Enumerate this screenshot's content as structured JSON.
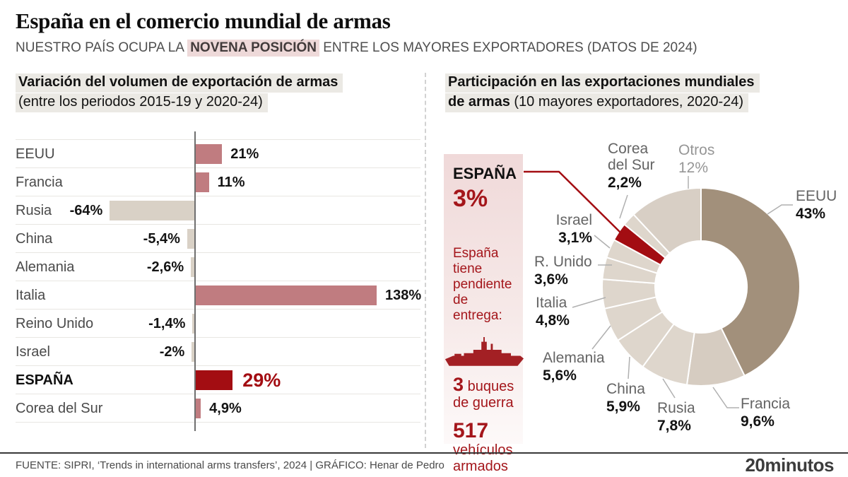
{
  "header": {
    "title": "España en el comercio mundial de armas",
    "subtitle_pre": "NUESTRO PAÍS OCUPA LA ",
    "subtitle_highlight": "NOVENA POSICIÓN",
    "subtitle_post": " ENTRE LOS MAYORES EXPORTADORES (DATOS DE 2024)"
  },
  "left_panel": {
    "title_bold": "Variación del volumen de exportación de armas",
    "title_sub": "(entre los periodos 2015-19 y 2020-24)",
    "bars": [
      {
        "label": "EEUU",
        "value": 21,
        "display": "21%"
      },
      {
        "label": "Francia",
        "value": 11,
        "display": "11%"
      },
      {
        "label": "Rusia",
        "value": -64,
        "display": "-64%"
      },
      {
        "label": "China",
        "value": -5.4,
        "display": "-5,4%"
      },
      {
        "label": "Alemania",
        "value": -2.6,
        "display": "-2,6%"
      },
      {
        "label": "Italia",
        "value": 138,
        "display": "138%"
      },
      {
        "label": "Reino Unido",
        "value": -1.4,
        "display": "-1,4%"
      },
      {
        "label": "Israel",
        "value": -2,
        "display": "-2%"
      },
      {
        "label": "ESPAÑA",
        "value": 29,
        "display": "29%",
        "emphasis": true
      },
      {
        "label": "Corea del Sur",
        "value": 4.9,
        "display": "4,9%"
      }
    ]
  },
  "right_panel": {
    "title_bold1": "Participación en las exportaciones mundiales",
    "title_bold2": "de armas",
    "title_sub": " (10 mayores exportadores, 2020-24)",
    "donut": {
      "slices": [
        {
          "label": "EEUU",
          "value": 43,
          "display": "43%"
        },
        {
          "label": "Francia",
          "value": 9.6,
          "display": "9,6%"
        },
        {
          "label": "Rusia",
          "value": 7.8,
          "display": "7,8%"
        },
        {
          "label": "China",
          "value": 5.9,
          "display": "5,9%"
        },
        {
          "label": "Alemania",
          "value": 5.6,
          "display": "5,6%"
        },
        {
          "label": "Italia",
          "value": 4.8,
          "display": "4,8%"
        },
        {
          "label": "R. Unido",
          "value": 3.6,
          "display": "3,6%"
        },
        {
          "label": "Israel",
          "value": 3.1,
          "display": "3,1%"
        },
        {
          "label": "ESPAÑA",
          "value": 3,
          "display": "3%",
          "emphasis": true
        },
        {
          "label": "Corea del Sur",
          "value": 2.2,
          "display": "2,2%"
        },
        {
          "label": "Otros",
          "value": 12,
          "display": "12%",
          "muted": true
        }
      ]
    },
    "callout": {
      "country": "ESPAÑA",
      "share": "3%",
      "pending_text": "España tiene pendiente de entrega:",
      "ship_icon": "warship-icon",
      "items": [
        {
          "number": "3",
          "number_inline": true,
          "lines": [
            "buques",
            "de guerra"
          ]
        },
        {
          "number": "517",
          "number_inline": false,
          "lines": [
            "vehículos",
            "armados"
          ]
        }
      ]
    }
  },
  "footer": {
    "source": "FUENTE: SIPRI, ‘Trends in international arms transfers’, 2024  |  GRÁFICO: Henar de Pedro",
    "brand": "20minutos"
  },
  "colors": {
    "accent_red": "#a30d12",
    "accent_red_text": "#a4161b",
    "bar_positive": "#c07c80",
    "bar_negative": "#d9d1c6",
    "donut_eeuu": "#a2907b",
    "donut_francia": "#d6ccc1",
    "donut_light": "#ded6cc",
    "donut_otros": "#d8cfc5",
    "connector_gray": "#b0b0b0"
  },
  "chart_data": [
    {
      "type": "bar",
      "orientation": "horizontal",
      "title": "Variación del volumen de exportación de armas (entre los periodos 2015-19 y 2020-24)",
      "categories": [
        "EEUU",
        "Francia",
        "Rusia",
        "China",
        "Alemania",
        "Italia",
        "Reino Unido",
        "Israel",
        "ESPAÑA",
        "Corea del Sur"
      ],
      "values": [
        21,
        11,
        -64,
        -5.4,
        -2.6,
        138,
        -1.4,
        -2,
        29,
        4.9
      ],
      "unit": "%",
      "xlim": [
        -64,
        138
      ],
      "highlight_category": "ESPAÑA",
      "grid": "row-separators",
      "legend": "none"
    },
    {
      "type": "pie",
      "subtype": "donut",
      "title": "Participación en las exportaciones mundiales de armas (10 mayores exportadores, 2020-24)",
      "labels": [
        "EEUU",
        "Francia",
        "Rusia",
        "China",
        "Alemania",
        "Italia",
        "R. Unido",
        "Israel",
        "ESPAÑA",
        "Corea del Sur",
        "Otros"
      ],
      "values": [
        43,
        9.6,
        7.8,
        5.9,
        5.6,
        4.8,
        3.6,
        3.1,
        3,
        2.2,
        12
      ],
      "unit": "%",
      "start_angle": "12-oclock",
      "direction": "clockwise",
      "highlight_label": "ESPAÑA",
      "legend": "outside-callout-labels"
    }
  ]
}
